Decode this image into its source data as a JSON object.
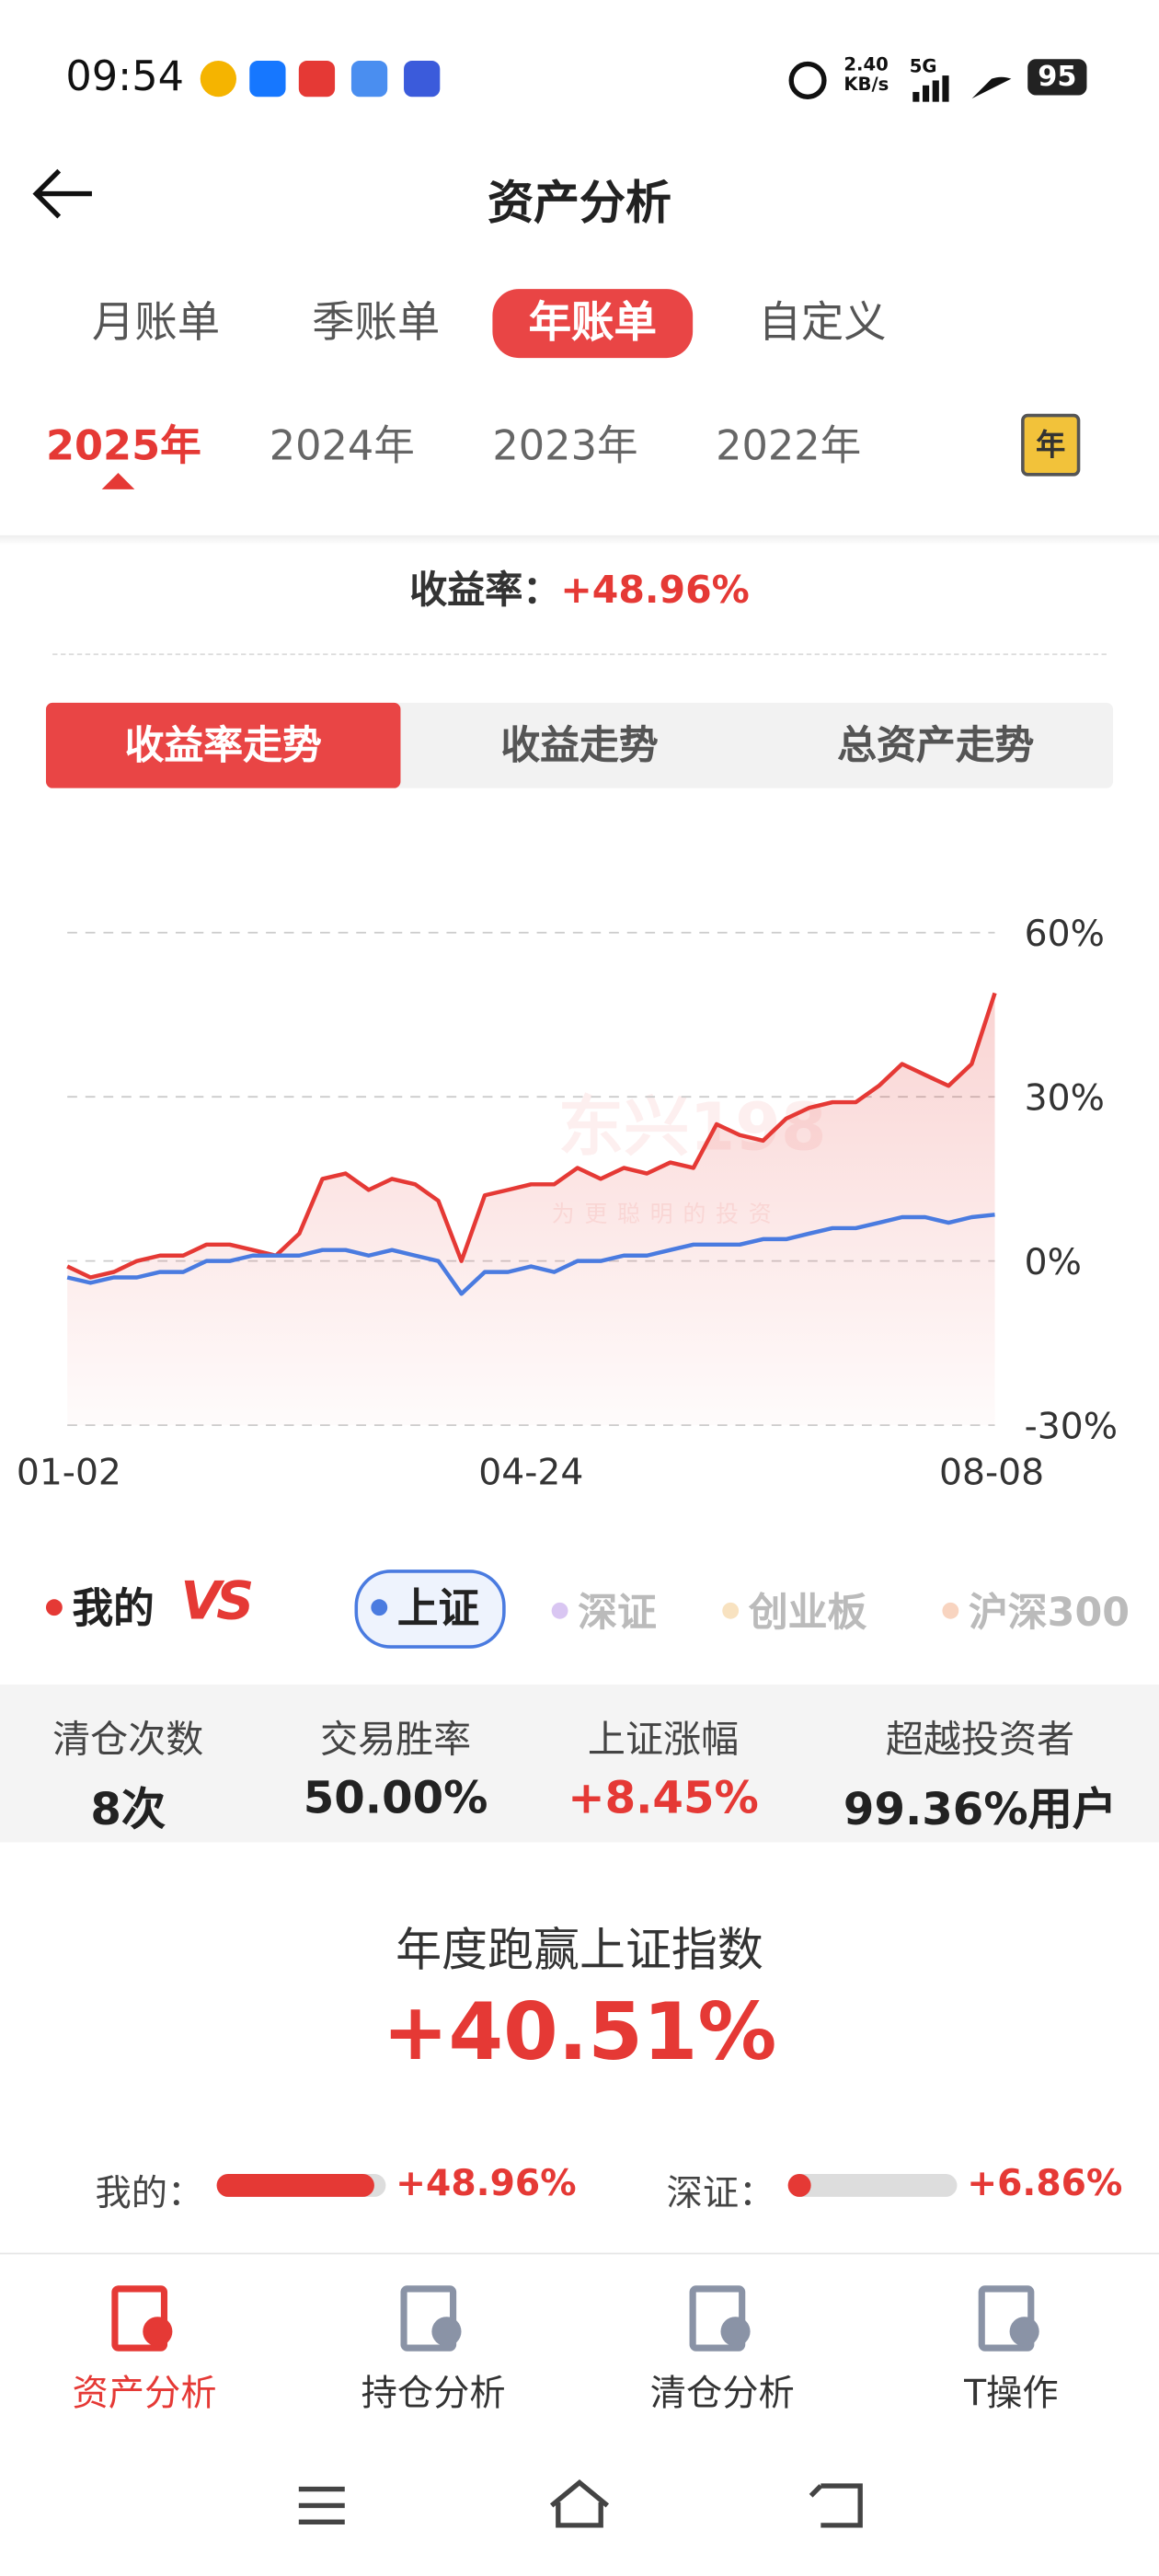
{
  "status_bar": {
    "time": "09:54",
    "net_speed": "2.40",
    "net_unit": "KB/s",
    "signal": "5G",
    "battery": "95"
  },
  "header": {
    "title": "资产分析"
  },
  "period_tabs": [
    "月账单",
    "季账单",
    "年账单",
    "自定义"
  ],
  "year_tabs": [
    "2025年",
    "2024年",
    "2023年",
    "2022年"
  ],
  "calendar_icon": "年",
  "return_rate": {
    "label": "收益率：",
    "value": "+48.96%"
  },
  "chart_tabs": [
    "收益率走势",
    "收益走势",
    "总资产走势"
  ],
  "chart_data": {
    "type": "line",
    "watermark": [
      "东兴198",
      "为更聪明的投资"
    ],
    "categories": [
      "01-02",
      null,
      null,
      null,
      null,
      null,
      null,
      null,
      null,
      null,
      null,
      null,
      null,
      null,
      null,
      null,
      null,
      null,
      null,
      null,
      "04-24",
      null,
      null,
      null,
      null,
      null,
      null,
      null,
      null,
      null,
      null,
      null,
      null,
      null,
      null,
      null,
      null,
      null,
      null,
      null,
      "08-08"
    ],
    "series": [
      {
        "name": "我的",
        "color": "#e53935",
        "values": [
          -1,
          -3,
          -2,
          0,
          1,
          1,
          3,
          3,
          2,
          1,
          5,
          15,
          16,
          13,
          15,
          14,
          11,
          0,
          12,
          13,
          14,
          14,
          17,
          15,
          17,
          16,
          18,
          17,
          25,
          23,
          22,
          26,
          28,
          29,
          29,
          32,
          36,
          34,
          32,
          36,
          48.96
        ]
      },
      {
        "name": "上证",
        "color": "#4a7be0",
        "values": [
          -3,
          -4,
          -3,
          -3,
          -2,
          -2,
          0,
          0,
          1,
          1,
          1,
          2,
          2,
          1,
          2,
          1,
          0,
          -6,
          -2,
          -2,
          -1,
          -2,
          0,
          0,
          1,
          1,
          2,
          3,
          3,
          3,
          4,
          4,
          5,
          6,
          6,
          7,
          8,
          8,
          7,
          8,
          8.45
        ]
      }
    ],
    "ylim": [
      -30,
      60
    ],
    "yticks": [
      {
        "value": -30,
        "label": "-30%"
      },
      {
        "value": 0,
        "label": "0%"
      },
      {
        "value": 30,
        "label": "30%"
      },
      {
        "value": 60,
        "label": "60%"
      }
    ],
    "grid": true
  },
  "vs_logo": "VS",
  "compare_options": [
    "深证",
    "创业板",
    "沪深300"
  ],
  "stats": [
    {
      "label": "清仓次数",
      "value": "8次"
    },
    {
      "label": "交易胜率",
      "value": "50.00%"
    },
    {
      "label": "上证涨幅",
      "value": "+8.45%"
    },
    {
      "label": "超越投资者",
      "value": "99.36%用户"
    }
  ],
  "beat": {
    "title": "年度跑赢上证指数",
    "value": "+40.51%"
  },
  "compare_bars": [
    {
      "label": "我的：",
      "value": 48.96,
      "value_label": "+48.96%"
    },
    {
      "label": "深证：",
      "value": 6.86,
      "value_label": "+6.86%"
    }
  ],
  "nav": [
    "资产分析",
    "持仓分析",
    "清仓分析",
    "T操作"
  ]
}
